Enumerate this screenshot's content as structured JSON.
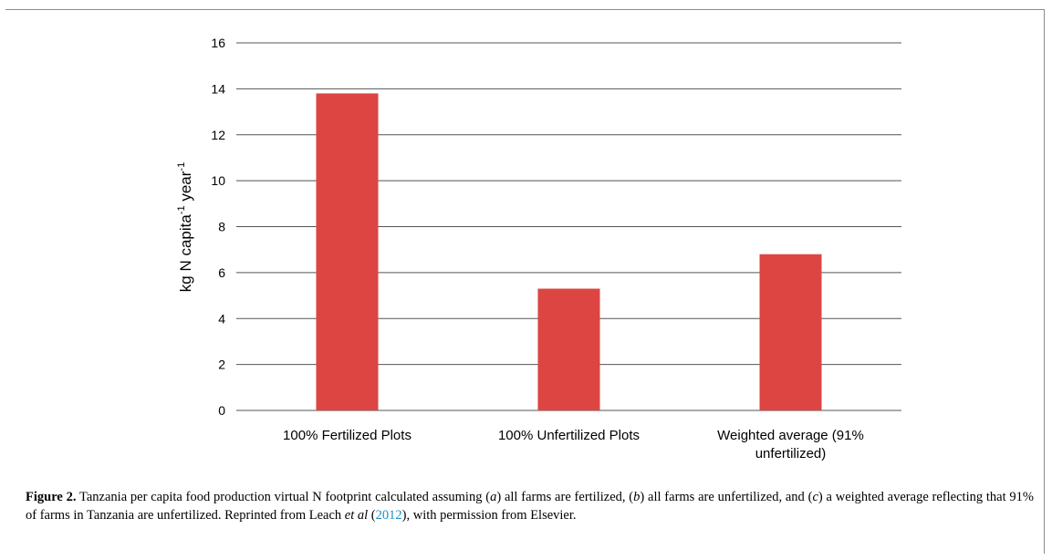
{
  "chart_data": {
    "type": "bar",
    "categories": [
      [
        "100% Fertilized Plots"
      ],
      [
        "100% Unfertilized Plots"
      ],
      [
        "Weighted average (91%",
        "unfertilized)"
      ]
    ],
    "values": [
      13.8,
      5.3,
      6.8
    ],
    "ylabel": "kg N capita-1 year-1",
    "ylabel_parts": {
      "a": "kg N capita",
      "sup1": "-1",
      "b": " year",
      "sup2": "-1"
    },
    "ylim": [
      0,
      16
    ],
    "yticks": [
      0,
      2,
      4,
      6,
      8,
      10,
      12,
      14,
      16
    ],
    "grid": true,
    "bar_color": "#dc4541",
    "gridline_color": "#555555"
  },
  "caption": {
    "label": "Figure 2.",
    "text_1": " Tanzania per capita food production virtual N footprint calculated assuming (",
    "a": "a",
    "text_2": ") all farms are fertilized, (",
    "b": "b",
    "text_3": ") all farms are unfertilized, and (",
    "c": "c",
    "text_4": ") a weighted average reflecting that 91% of farms in Tanzania are unfertilized. Reprinted from Leach ",
    "etal": "et al",
    "text_5": " (",
    "year": "2012",
    "text_6": "), with permission from Elsevier."
  }
}
